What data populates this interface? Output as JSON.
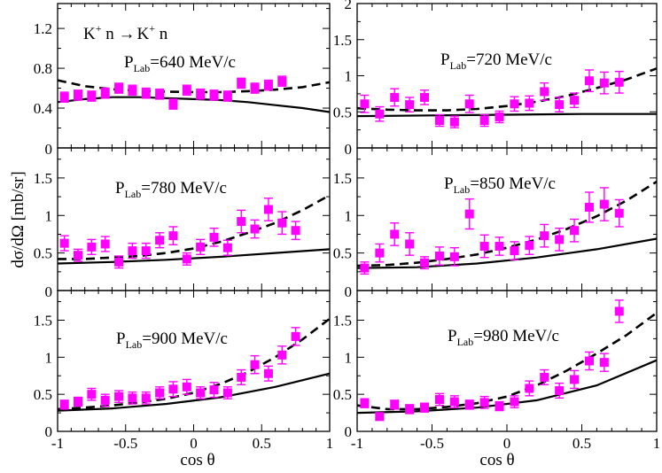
{
  "figure": {
    "xlabel": "cos θ",
    "ylabel": "dσ/dΩ [mb/sr]",
    "reaction": {
      "k1": "K",
      "plus1": "+",
      "mid": " n →",
      "k2": "K",
      "plus2": "+",
      "end": " n"
    },
    "colors": {
      "data": "#ff00ff",
      "line": "#000000"
    }
  },
  "chart_data": [
    {
      "type": "scatter",
      "panel": "top-left",
      "label": {
        "p": "P",
        "sub": "Lab",
        "value": "=640 MeV/c"
      },
      "xlim": [
        -1,
        1
      ],
      "ylim": [
        0,
        1.45
      ],
      "xticks": [],
      "yticks": [
        0.4,
        0.8,
        1.2
      ],
      "ytick_labels": [
        "0.4",
        "0.8",
        "1.2"
      ],
      "bottom_label": "0",
      "data": {
        "x": [
          -0.95,
          -0.85,
          -0.75,
          -0.65,
          -0.55,
          -0.45,
          -0.35,
          -0.25,
          -0.15,
          -0.05,
          0.05,
          0.15,
          0.25,
          0.35,
          0.45,
          0.55,
          0.65
        ],
        "y": [
          0.51,
          0.53,
          0.52,
          0.55,
          0.6,
          0.58,
          0.55,
          0.54,
          0.44,
          0.58,
          0.54,
          0.53,
          0.52,
          0.65,
          0.6,
          0.63,
          0.67
        ],
        "err": [
          0.05,
          0.05,
          0.05,
          0.05,
          0.05,
          0.05,
          0.05,
          0.05,
          0.05,
          0.05,
          0.05,
          0.05,
          0.05,
          0.05,
          0.05,
          0.05,
          0.05
        ]
      },
      "solid": {
        "x": [
          -1,
          -0.8,
          -0.6,
          -0.4,
          -0.2,
          0,
          0.2,
          0.4,
          0.6,
          0.8,
          1
        ],
        "y": [
          0.46,
          0.49,
          0.51,
          0.51,
          0.5,
          0.49,
          0.48,
          0.46,
          0.43,
          0.4,
          0.36
        ]
      },
      "dashed": {
        "x": [
          -1,
          -0.8,
          -0.6,
          -0.4,
          -0.2,
          0,
          0.2,
          0.4,
          0.6,
          0.8,
          1
        ],
        "y": [
          0.68,
          0.62,
          0.59,
          0.575,
          0.565,
          0.56,
          0.56,
          0.57,
          0.585,
          0.61,
          0.66
        ]
      }
    },
    {
      "type": "scatter",
      "panel": "top-right",
      "label": {
        "p": "P",
        "sub": "Lab",
        "value": "=720 MeV/c"
      },
      "xlim": [
        -1,
        1
      ],
      "ylim": [
        0,
        2
      ],
      "xticks": [],
      "yticks": [
        0.5,
        1,
        1.5,
        2
      ],
      "ytick_labels": [
        "0.5",
        "1",
        "1.5",
        "2"
      ],
      "bottom_label": "0",
      "data": {
        "x": [
          -0.95,
          -0.85,
          -0.75,
          -0.65,
          -0.55,
          -0.45,
          -0.35,
          -0.25,
          -0.15,
          -0.05,
          0.05,
          0.15,
          0.25,
          0.35,
          0.45,
          0.55,
          0.65,
          0.75
        ],
        "y": [
          0.61,
          0.47,
          0.7,
          0.6,
          0.7,
          0.38,
          0.36,
          0.61,
          0.38,
          0.43,
          0.61,
          0.62,
          0.78,
          0.6,
          0.66,
          0.93,
          0.9,
          0.91
        ],
        "err": [
          0.12,
          0.1,
          0.12,
          0.1,
          0.1,
          0.08,
          0.08,
          0.12,
          0.08,
          0.08,
          0.1,
          0.1,
          0.12,
          0.1,
          0.1,
          0.15,
          0.15,
          0.15
        ]
      },
      "solid": {
        "x": [
          -1,
          -0.5,
          0,
          0.5,
          1
        ],
        "y": [
          0.44,
          0.45,
          0.46,
          0.47,
          0.47
        ]
      },
      "dashed": {
        "x": [
          -1,
          -0.8,
          -0.6,
          -0.4,
          -0.2,
          0,
          0.2,
          0.4,
          0.6,
          0.8,
          1
        ],
        "y": [
          0.55,
          0.53,
          0.52,
          0.52,
          0.54,
          0.58,
          0.64,
          0.72,
          0.83,
          0.95,
          1.1
        ]
      }
    },
    {
      "type": "scatter",
      "panel": "middle-left",
      "label": {
        "p": "P",
        "sub": "Lab",
        "value": "=780 MeV/c"
      },
      "xlim": [
        -1,
        1
      ],
      "ylim": [
        0,
        1.9
      ],
      "xticks": [],
      "yticks": [
        0.5,
        1,
        1.5
      ],
      "ytick_labels": [
        "0.5",
        "1",
        "1.5"
      ],
      "bottom_label": "0",
      "data": {
        "x": [
          -0.95,
          -0.85,
          -0.75,
          -0.65,
          -0.55,
          -0.45,
          -0.35,
          -0.25,
          -0.15,
          -0.05,
          0.05,
          0.15,
          0.25,
          0.35,
          0.45,
          0.55,
          0.65,
          0.75
        ],
        "y": [
          0.63,
          0.47,
          0.58,
          0.62,
          0.38,
          0.53,
          0.53,
          0.67,
          0.73,
          0.42,
          0.58,
          0.71,
          0.57,
          0.92,
          0.82,
          1.08,
          0.9,
          0.8
        ],
        "err": [
          0.1,
          0.08,
          0.1,
          0.1,
          0.08,
          0.1,
          0.1,
          0.1,
          0.12,
          0.08,
          0.1,
          0.12,
          0.1,
          0.15,
          0.12,
          0.15,
          0.15,
          0.12
        ]
      },
      "solid": {
        "x": [
          -1,
          -0.6,
          -0.2,
          0.2,
          0.6,
          1
        ],
        "y": [
          0.36,
          0.38,
          0.41,
          0.45,
          0.5,
          0.55
        ]
      },
      "dashed": {
        "x": [
          -1,
          -0.8,
          -0.6,
          -0.4,
          -0.2,
          0,
          0.2,
          0.4,
          0.6,
          0.8,
          1
        ],
        "y": [
          0.42,
          0.42,
          0.44,
          0.46,
          0.5,
          0.56,
          0.65,
          0.77,
          0.9,
          1.07,
          1.27
        ]
      }
    },
    {
      "type": "scatter",
      "panel": "middle-right",
      "label": {
        "p": "P",
        "sub": "Lab",
        "value": "=850 MeV/c"
      },
      "xlim": [
        -1,
        1
      ],
      "ylim": [
        0,
        1.9
      ],
      "xticks": [],
      "yticks": [
        0.5,
        1,
        1.5
      ],
      "ytick_labels": [
        "0.5",
        "1",
        "1.5"
      ],
      "bottom_label": "0",
      "data": {
        "x": [
          -0.95,
          -0.85,
          -0.75,
          -0.65,
          -0.55,
          -0.45,
          -0.35,
          -0.25,
          -0.15,
          -0.05,
          0.05,
          0.15,
          0.25,
          0.35,
          0.45,
          0.55,
          0.65,
          0.75
        ],
        "y": [
          0.3,
          0.5,
          0.75,
          0.62,
          0.37,
          0.46,
          0.45,
          1.02,
          0.59,
          0.59,
          0.53,
          0.6,
          0.73,
          0.68,
          0.8,
          1.11,
          1.15,
          1.03
        ],
        "err": [
          0.08,
          0.12,
          0.15,
          0.15,
          0.08,
          0.12,
          0.12,
          0.2,
          0.15,
          0.12,
          0.12,
          0.12,
          0.15,
          0.15,
          0.15,
          0.2,
          0.22,
          0.18
        ]
      },
      "solid": {
        "x": [
          -1,
          -0.6,
          -0.2,
          0.2,
          0.6,
          1
        ],
        "y": [
          0.3,
          0.31,
          0.36,
          0.44,
          0.55,
          0.69
        ]
      },
      "dashed": {
        "x": [
          -1,
          -0.8,
          -0.6,
          -0.4,
          -0.2,
          0,
          0.2,
          0.4,
          0.6,
          0.8,
          1
        ],
        "y": [
          0.33,
          0.34,
          0.37,
          0.42,
          0.48,
          0.57,
          0.68,
          0.82,
          0.99,
          1.2,
          1.45
        ]
      }
    },
    {
      "type": "scatter",
      "panel": "bottom-left",
      "label": {
        "p": "P",
        "sub": "Lab",
        "value": "=900 MeV/c"
      },
      "xlim": [
        -1,
        1
      ],
      "ylim": [
        0,
        1.9
      ],
      "xticks": [
        -1,
        -0.5,
        0,
        0.5,
        1
      ],
      "xtick_labels": [
        "-1",
        "-0.5",
        "0",
        "0.5",
        "1"
      ],
      "yticks": [
        0,
        0.5,
        1,
        1.5
      ],
      "ytick_labels": [
        "0",
        "0.5",
        "1",
        "1.5"
      ],
      "data": {
        "x": [
          -0.95,
          -0.85,
          -0.75,
          -0.65,
          -0.55,
          -0.45,
          -0.35,
          -0.25,
          -0.15,
          -0.05,
          0.05,
          0.15,
          0.25,
          0.35,
          0.45,
          0.55,
          0.65,
          0.75
        ],
        "y": [
          0.36,
          0.4,
          0.5,
          0.42,
          0.47,
          0.45,
          0.45,
          0.52,
          0.57,
          0.6,
          0.52,
          0.56,
          0.52,
          0.73,
          0.9,
          0.78,
          1.03,
          1.28
        ],
        "err": [
          0.06,
          0.06,
          0.08,
          0.08,
          0.08,
          0.08,
          0.08,
          0.08,
          0.1,
          0.1,
          0.08,
          0.1,
          0.08,
          0.1,
          0.12,
          0.1,
          0.12,
          0.12
        ]
      },
      "solid": {
        "x": [
          -1,
          -0.6,
          -0.2,
          0.2,
          0.6,
          1
        ],
        "y": [
          0.28,
          0.31,
          0.37,
          0.46,
          0.6,
          0.78
        ]
      },
      "dashed": {
        "x": [
          -1,
          -0.8,
          -0.6,
          -0.4,
          -0.2,
          0,
          0.2,
          0.4,
          0.6,
          0.8,
          1
        ],
        "y": [
          0.3,
          0.32,
          0.35,
          0.39,
          0.44,
          0.52,
          0.64,
          0.8,
          1.0,
          1.24,
          1.52
        ]
      }
    },
    {
      "type": "scatter",
      "panel": "bottom-right",
      "label": {
        "p": "P",
        "sub": "Lab",
        "value": "=980 MeV/c"
      },
      "xlim": [
        -1,
        1
      ],
      "ylim": [
        0,
        1.9
      ],
      "xticks": [
        -1,
        -0.5,
        0,
        0.5,
        1
      ],
      "xtick_labels": [
        "-1",
        "-0.5",
        "0",
        "0.5",
        "1"
      ],
      "yticks": [
        0,
        0.5,
        1,
        1.5
      ],
      "ytick_labels": [
        "0",
        "0.5",
        "1",
        "1.5"
      ],
      "data": {
        "x": [
          -0.95,
          -0.85,
          -0.75,
          -0.65,
          -0.55,
          -0.45,
          -0.35,
          -0.25,
          -0.15,
          -0.05,
          0.05,
          0.15,
          0.25,
          0.35,
          0.45,
          0.55,
          0.65,
          0.75
        ],
        "y": [
          0.38,
          0.2,
          0.36,
          0.3,
          0.32,
          0.43,
          0.4,
          0.36,
          0.39,
          0.34,
          0.4,
          0.58,
          0.73,
          0.55,
          0.7,
          0.95,
          0.93,
          1.62
        ],
        "err": [
          0.06,
          0.05,
          0.06,
          0.06,
          0.06,
          0.08,
          0.08,
          0.06,
          0.08,
          0.06,
          0.08,
          0.1,
          0.1,
          0.1,
          0.12,
          0.12,
          0.12,
          0.15
        ]
      },
      "solid": {
        "x": [
          -1,
          -0.6,
          -0.2,
          0.2,
          0.6,
          1
        ],
        "y": [
          0.25,
          0.27,
          0.32,
          0.42,
          0.62,
          0.96
        ]
      },
      "dashed": {
        "x": [
          -1,
          -0.8,
          -0.6,
          -0.4,
          -0.2,
          0,
          0.2,
          0.4,
          0.6,
          0.8,
          1
        ],
        "y": [
          0.35,
          0.3,
          0.3,
          0.33,
          0.38,
          0.47,
          0.62,
          0.82,
          1.05,
          1.3,
          1.6
        ]
      }
    }
  ]
}
